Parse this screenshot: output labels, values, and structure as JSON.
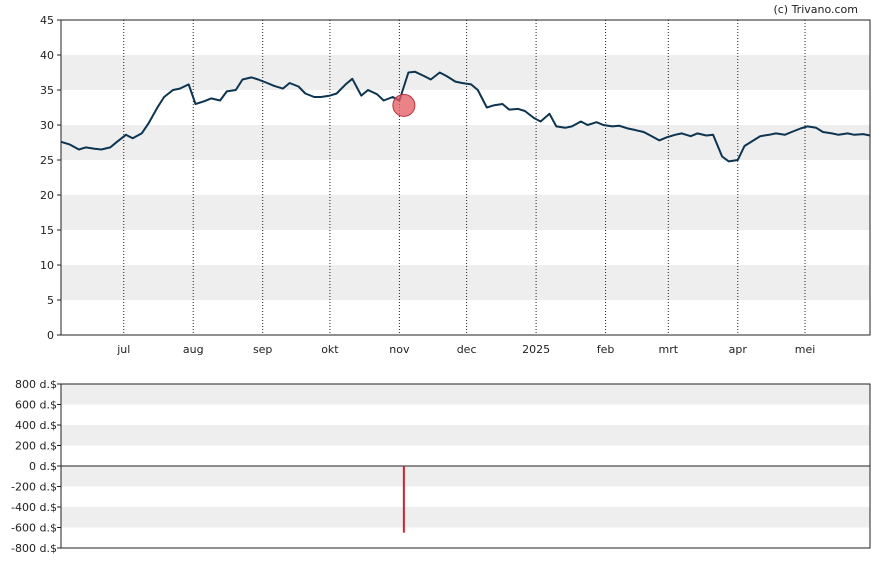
{
  "credit": "(c) Trivano.com",
  "chart_data": [
    {
      "type": "line",
      "title": "",
      "xlabel": "",
      "ylabel": "",
      "ylim": [
        0,
        45
      ],
      "yticks": [
        0,
        5,
        10,
        15,
        20,
        25,
        30,
        35,
        40,
        45
      ],
      "grid": "alternating horizontal bands, dotted vertical lines at month starts",
      "x_range": [
        "2024-06-03",
        "2025-05-30"
      ],
      "xtick_labels": [
        {
          "date": "2024-07-01",
          "label": "jul"
        },
        {
          "date": "2024-08-01",
          "label": "aug"
        },
        {
          "date": "2024-09-01",
          "label": "sep"
        },
        {
          "date": "2024-10-01",
          "label": "okt"
        },
        {
          "date": "2024-11-01",
          "label": "nov"
        },
        {
          "date": "2024-12-01",
          "label": "dec"
        },
        {
          "date": "2025-01-01",
          "label": "2025"
        },
        {
          "date": "2025-02-01",
          "label": "feb"
        },
        {
          "date": "2025-03-01",
          "label": "mrt"
        },
        {
          "date": "2025-04-01",
          "label": "apr"
        },
        {
          "date": "2025-05-01",
          "label": "mei"
        }
      ],
      "line_color": "#0d3450",
      "series": [
        {
          "x": [
            "2024-06-03",
            "2024-06-07",
            "2024-06-11",
            "2024-06-14",
            "2024-06-18",
            "2024-06-21",
            "2024-06-25",
            "2024-06-28",
            "2024-07-02",
            "2024-07-05",
            "2024-07-09",
            "2024-07-12",
            "2024-07-16",
            "2024-07-19",
            "2024-07-23",
            "2024-07-26",
            "2024-07-30",
            "2024-08-02",
            "2024-08-06",
            "2024-08-09",
            "2024-08-13",
            "2024-08-16",
            "2024-08-20",
            "2024-08-23",
            "2024-08-27",
            "2024-08-30",
            "2024-09-03",
            "2024-09-06",
            "2024-09-10",
            "2024-09-13",
            "2024-09-17",
            "2024-09-20",
            "2024-09-24",
            "2024-09-27",
            "2024-10-01",
            "2024-10-04",
            "2024-10-08",
            "2024-10-11",
            "2024-10-15",
            "2024-10-18",
            "2024-10-22",
            "2024-10-25",
            "2024-10-29",
            "2024-11-01",
            "2024-11-05",
            "2024-11-08",
            "2024-11-12",
            "2024-11-15",
            "2024-11-19",
            "2024-11-22",
            "2024-11-26",
            "2024-11-29",
            "2024-12-03",
            "2024-12-06",
            "2024-12-10",
            "2024-12-13",
            "2024-12-17",
            "2024-12-20",
            "2024-12-24",
            "2024-12-27",
            "2024-12-31",
            "2025-01-03",
            "2025-01-07",
            "2025-01-10",
            "2025-01-14",
            "2025-01-17",
            "2025-01-21",
            "2025-01-24",
            "2025-01-28",
            "2025-01-31",
            "2025-02-04",
            "2025-02-07",
            "2025-02-11",
            "2025-02-14",
            "2025-02-18",
            "2025-02-21",
            "2025-02-25",
            "2025-02-28",
            "2025-03-04",
            "2025-03-07",
            "2025-03-11",
            "2025-03-14",
            "2025-03-18",
            "2025-03-21",
            "2025-03-25",
            "2025-03-28",
            "2025-04-01",
            "2025-04-04",
            "2025-04-08",
            "2025-04-11",
            "2025-04-15",
            "2025-04-18",
            "2025-04-22",
            "2025-04-25",
            "2025-04-29",
            "2025-05-02",
            "2025-05-06",
            "2025-05-09",
            "2025-05-13",
            "2025-05-16",
            "2025-05-20",
            "2025-05-23",
            "2025-05-27",
            "2025-05-30"
          ],
          "values": [
            27.6,
            27.2,
            26.5,
            26.8,
            26.6,
            26.5,
            26.8,
            27.6,
            28.6,
            28.1,
            28.8,
            30.2,
            32.5,
            34.0,
            35.0,
            35.2,
            35.8,
            33.0,
            33.4,
            33.8,
            33.5,
            34.8,
            35.0,
            36.5,
            36.8,
            36.5,
            36.0,
            35.6,
            35.2,
            36.0,
            35.5,
            34.5,
            34.0,
            34.0,
            34.2,
            34.5,
            35.8,
            36.6,
            34.2,
            35.0,
            34.4,
            33.5,
            34.0,
            33.5,
            37.5,
            37.6,
            37.0,
            36.5,
            37.5,
            37.0,
            36.2,
            36.0,
            35.8,
            35.0,
            32.5,
            32.8,
            33.0,
            32.2,
            32.3,
            32.0,
            31.0,
            30.5,
            31.6,
            29.8,
            29.6,
            29.8,
            30.5,
            30.0,
            30.4,
            30.0,
            29.8,
            29.9,
            29.5,
            29.3,
            29.0,
            28.5,
            27.8,
            28.2,
            28.6,
            28.8,
            28.4,
            28.8,
            28.5,
            28.6,
            25.5,
            24.8,
            25.0,
            27.0,
            27.8,
            28.4,
            28.6,
            28.8,
            28.6,
            29.0,
            29.5,
            29.8,
            29.6,
            29.0,
            28.8,
            28.6,
            28.8,
            28.6,
            28.7,
            28.5
          ]
        }
      ],
      "annotations": [
        {
          "marker": "circle",
          "date": "2024-11-03",
          "value": 32.8,
          "color": "#e35a60"
        }
      ]
    },
    {
      "type": "bar",
      "title": "",
      "xlabel": "",
      "ylabel": "",
      "ylim": [
        -800,
        800
      ],
      "ytick_labels": [
        {
          "value": 800,
          "label": "800 d.$"
        },
        {
          "value": 600,
          "label": "600 d.$"
        },
        {
          "value": 400,
          "label": "400 d.$"
        },
        {
          "value": 200,
          "label": "200 d.$"
        },
        {
          "value": 0,
          "label": "0 d.$"
        },
        {
          "value": -200,
          "label": "-200 d.$"
        },
        {
          "value": -400,
          "label": "-400 d.$"
        },
        {
          "value": -600,
          "label": "-600 d.$"
        },
        {
          "value": -800,
          "label": "-800 d.$"
        }
      ],
      "grid": "alternating horizontal bands",
      "bars": [
        {
          "date": "2024-11-03",
          "value": -650,
          "color": "#cc2233"
        }
      ]
    }
  ]
}
